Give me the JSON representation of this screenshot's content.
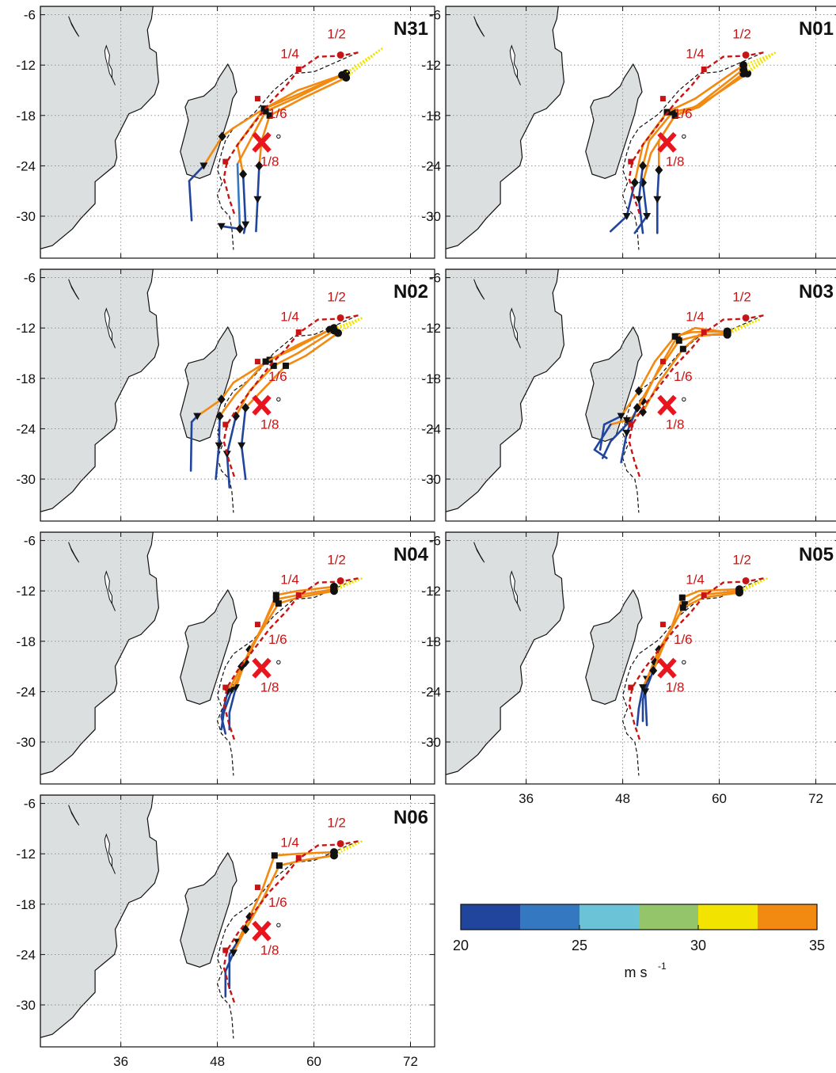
{
  "chart_data": {
    "type": "map-panels",
    "lon_ticks": [
      36,
      48,
      60,
      72
    ],
    "lat_ticks": [
      -6,
      -12,
      -18,
      -24,
      -30
    ],
    "lon_range": [
      26,
      75
    ],
    "lat_range": [
      -35,
      -5
    ],
    "grid": true,
    "panels": [
      "N31",
      "N01",
      "N02",
      "N03",
      "N04",
      "N05",
      "N06"
    ],
    "fraction_labels": [
      "1/2",
      "1/4",
      "1/6",
      "1/8"
    ],
    "fraction_points": [
      [
        63.3,
        -10.8
      ],
      [
        58.1,
        -12.5
      ],
      [
        53,
        -16
      ],
      [
        49,
        -23.5
      ]
    ],
    "center_mark": {
      "symbol": "X",
      "lon": 53.5,
      "lat": -21.2,
      "color": "#e8141e"
    },
    "tracks": {
      "N31": [
        {
          "pts": [
            [
              68.5,
              -10
            ],
            [
              64,
              -13
            ],
            [
              58,
              -15.5
            ],
            [
              53.8,
              -17.2
            ],
            [
              50,
              -19.5
            ],
            [
              48.6,
              -20.5
            ],
            [
              46.3,
              -24
            ],
            [
              44.5,
              -25.8
            ],
            [
              44.8,
              -30.5
            ]
          ]
        },
        {
          "pts": [
            [
              68.5,
              -10
            ],
            [
              64,
              -13
            ],
            [
              58,
              -15
            ],
            [
              53.8,
              -17.2
            ],
            [
              50.5,
              -21.5
            ],
            [
              51.2,
              -25
            ],
            [
              51.5,
              -31
            ],
            [
              51.3,
              -32
            ]
          ]
        },
        {
          "pts": [
            [
              68.5,
              -10
            ],
            [
              63.5,
              -13.2
            ],
            [
              58,
              -15.8
            ],
            [
              54,
              -17.5
            ],
            [
              50.5,
              -23.8
            ],
            [
              50.8,
              -31.5
            ],
            [
              48.5,
              -31.2
            ]
          ]
        },
        {
          "pts": [
            [
              68.5,
              -10
            ],
            [
              64,
              -13.5
            ],
            [
              58.5,
              -16
            ],
            [
              54.5,
              -18
            ],
            [
              53.5,
              -21
            ],
            [
              53.2,
              -24
            ],
            [
              53,
              -28
            ],
            [
              52.8,
              -31.8
            ]
          ]
        }
      ],
      "N01": [
        {
          "pts": [
            [
              67,
              -10.5
            ],
            [
              63.5,
              -13
            ],
            [
              58,
              -16.5
            ],
            [
              54.5,
              -18
            ],
            [
              52.5,
              -21
            ],
            [
              52.5,
              -24.5
            ],
            [
              52.3,
              -28
            ],
            [
              52.3,
              -32
            ]
          ]
        },
        {
          "pts": [
            [
              67,
              -10.5
            ],
            [
              63,
              -13
            ],
            [
              57.5,
              -17
            ],
            [
              54.5,
              -18
            ],
            [
              51.5,
              -22.5
            ],
            [
              50.5,
              -26
            ],
            [
              51,
              -30
            ],
            [
              49.5,
              -32
            ]
          ]
        },
        {
          "pts": [
            [
              67,
              -10.5
            ],
            [
              63,
              -12.5
            ],
            [
              57,
              -17
            ],
            [
              54.2,
              -17.6
            ],
            [
              51.3,
              -21
            ],
            [
              50.5,
              -24
            ],
            [
              50,
              -28
            ],
            [
              50.5,
              -32
            ]
          ]
        },
        {
          "pts": [
            [
              67,
              -10.5
            ],
            [
              63,
              -12
            ],
            [
              57,
              -16
            ],
            [
              53.5,
              -17.6
            ],
            [
              50.5,
              -21.5
            ],
            [
              49.5,
              -26
            ],
            [
              48.5,
              -30
            ],
            [
              46.5,
              -31.8
            ]
          ]
        }
      ],
      "N02": [
        {
          "pts": [
            [
              66,
              -10.8
            ],
            [
              62.5,
              -12
            ],
            [
              58,
              -14
            ],
            [
              54.5,
              -15.8
            ],
            [
              50,
              -18.5
            ],
            [
              48.5,
              -20.5
            ],
            [
              45.5,
              -22.5
            ],
            [
              44.8,
              -23.2
            ],
            [
              44.7,
              -29
            ]
          ]
        },
        {
          "pts": [
            [
              66,
              -10.8
            ],
            [
              62,
              -12.2
            ],
            [
              57.5,
              -14.5
            ],
            [
              54,
              -16
            ],
            [
              50.2,
              -20
            ],
            [
              48.3,
              -22.5
            ],
            [
              48.2,
              -26
            ],
            [
              47.8,
              -30
            ]
          ]
        },
        {
          "pts": [
            [
              66,
              -10.8
            ],
            [
              62.5,
              -12.3
            ],
            [
              58,
              -15
            ],
            [
              55,
              -16.5
            ],
            [
              52,
              -19.5
            ],
            [
              50.3,
              -22.5
            ],
            [
              49.2,
              -27
            ],
            [
              49.5,
              -31
            ]
          ]
        },
        {
          "pts": [
            [
              66,
              -10.8
            ],
            [
              63,
              -12.6
            ],
            [
              59,
              -15.3
            ],
            [
              56.5,
              -16.5
            ],
            [
              53.5,
              -19.5
            ],
            [
              51.5,
              -21.5
            ],
            [
              51,
              -26
            ],
            [
              51.5,
              -30
            ]
          ]
        }
      ],
      "N03": [
        {
          "pts": [
            [
              65,
              -11
            ],
            [
              61,
              -12.5
            ],
            [
              57,
              -12
            ],
            [
              54.8,
              -13
            ],
            [
              52.5,
              -16.8
            ],
            [
              50.5,
              -20.7
            ],
            [
              48.8,
              -23.2
            ],
            [
              46.5,
              -25.5
            ],
            [
              45.5,
              -27.5
            ]
          ]
        },
        {
          "pts": [
            [
              65,
              -11
            ],
            [
              61,
              -12.8
            ],
            [
              57.5,
              -12.8
            ],
            [
              55.5,
              -14.5
            ],
            [
              52.5,
              -18.5
            ],
            [
              50.5,
              -22
            ],
            [
              48.5,
              -23
            ],
            [
              46.5,
              -23.5
            ],
            [
              44.5,
              -26.5
            ],
            [
              46,
              -27.5
            ]
          ]
        },
        {
          "pts": [
            [
              65,
              -11
            ],
            [
              61,
              -12.6
            ],
            [
              57,
              -13
            ],
            [
              55,
              -13.5
            ],
            [
              52.2,
              -17.5
            ],
            [
              49.8,
              -21.5
            ],
            [
              48.5,
              -24.5
            ],
            [
              47.8,
              -28
            ]
          ]
        },
        {
          "pts": [
            [
              65,
              -11
            ],
            [
              61,
              -12.4
            ],
            [
              56.5,
              -12.5
            ],
            [
              54.5,
              -13
            ],
            [
              52,
              -16
            ],
            [
              50,
              -19.5
            ],
            [
              47.8,
              -22.5
            ],
            [
              45.7,
              -23.5
            ],
            [
              45.2,
              -26.5
            ]
          ]
        }
      ],
      "N04": [
        {
          "pts": [
            [
              66,
              -10.5
            ],
            [
              62.5,
              -11.5
            ],
            [
              58,
              -12
            ],
            [
              55.3,
              -12.5
            ],
            [
              53.5,
              -16.5
            ],
            [
              52,
              -19
            ],
            [
              50.3,
              -23.5
            ],
            [
              49.5,
              -26.5
            ],
            [
              49.5,
              -28.5
            ]
          ]
        },
        {
          "pts": [
            [
              66,
              -10.5
            ],
            [
              62.5,
              -11.8
            ],
            [
              58,
              -12.5
            ],
            [
              55.3,
              -13
            ],
            [
              53.2,
              -17
            ],
            [
              51.5,
              -20.5
            ],
            [
              49.8,
              -23.8
            ],
            [
              48.8,
              -26.5
            ],
            [
              48.5,
              -28.5
            ]
          ]
        },
        {
          "pts": [
            [
              66,
              -10.5
            ],
            [
              62.5,
              -12
            ],
            [
              58,
              -12.8
            ],
            [
              55.6,
              -13.5
            ],
            [
              53,
              -17.5
            ],
            [
              51,
              -21
            ],
            [
              49.3,
              -24
            ],
            [
              48.5,
              -27
            ],
            [
              49,
              -29
            ]
          ]
        }
      ],
      "N05": [
        {
          "pts": [
            [
              66,
              -10.5
            ],
            [
              62.5,
              -11.8
            ],
            [
              57.5,
              -12
            ],
            [
              55.4,
              -12.8
            ],
            [
              54,
              -16.5
            ],
            [
              52.5,
              -19
            ],
            [
              51,
              -22.5
            ],
            [
              50.5,
              -25
            ],
            [
              50.5,
              -27.5
            ]
          ]
        },
        {
          "pts": [
            [
              66,
              -10.5
            ],
            [
              62.5,
              -12
            ],
            [
              57.5,
              -12.5
            ],
            [
              55.7,
              -13.6
            ],
            [
              53.8,
              -17
            ],
            [
              52,
              -20.5
            ],
            [
              50.5,
              -23.5
            ],
            [
              50,
              -26
            ],
            [
              49.8,
              -28
            ]
          ]
        },
        {
          "pts": [
            [
              66,
              -10.5
            ],
            [
              62.5,
              -12.2
            ],
            [
              58,
              -12.8
            ],
            [
              55.5,
              -14
            ],
            [
              53.5,
              -17.5
            ],
            [
              51.8,
              -21.5
            ],
            [
              50.8,
              -24
            ],
            [
              51,
              -28
            ]
          ]
        }
      ],
      "N06": [
        {
          "pts": [
            [
              66,
              -10.5
            ],
            [
              62.5,
              -11.8
            ],
            [
              58,
              -12
            ],
            [
              55.1,
              -12.2
            ],
            [
              53.5,
              -16.5
            ],
            [
              52,
              -19.5
            ],
            [
              50.5,
              -22.5
            ],
            [
              49.5,
              -24
            ],
            [
              49.5,
              -28
            ]
          ]
        },
        {
          "pts": [
            [
              66,
              -10.5
            ],
            [
              62.5,
              -12.2
            ],
            [
              58.5,
              -12.8
            ],
            [
              55.7,
              -13.4
            ],
            [
              53.6,
              -17.5
            ],
            [
              51.5,
              -21
            ],
            [
              50,
              -23.8
            ],
            [
              49,
              -26
            ],
            [
              49,
              -29
            ]
          ]
        }
      ]
    },
    "colorbar": {
      "ticks": [
        "20",
        "25",
        "30",
        "35"
      ],
      "unit": "m s",
      "unit_sup": "-1",
      "colors": [
        "#21449c",
        "#3478c1",
        "#6bc3d8",
        "#94c56b",
        "#f2e400",
        "#f28a12"
      ]
    }
  }
}
